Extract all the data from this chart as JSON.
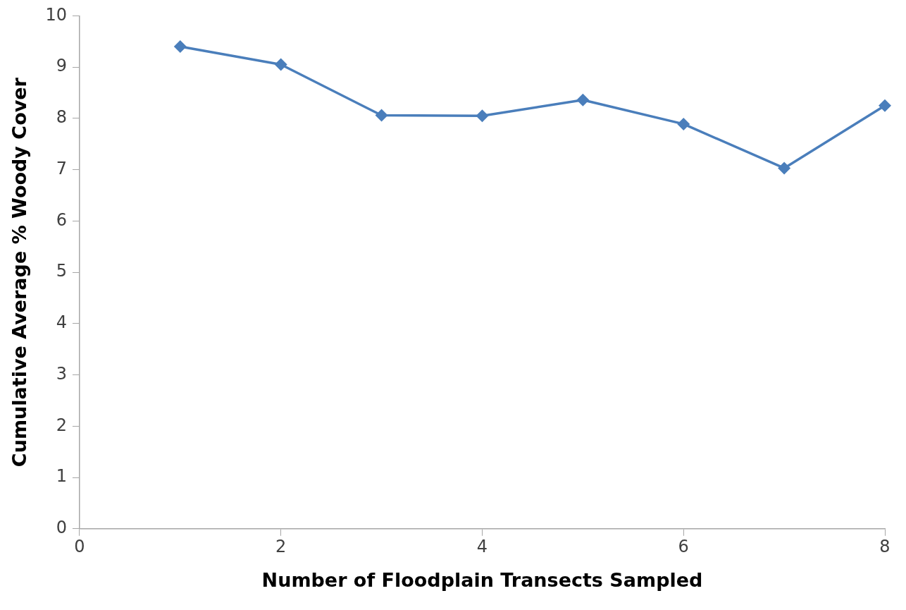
{
  "chart_data": {
    "type": "line",
    "xlabel": "Number of Floodplain Transects Sampled",
    "ylabel": "Cumulative Average % Woody Cover",
    "x": [
      1,
      2,
      3,
      4,
      5,
      6,
      7,
      8
    ],
    "series": [
      {
        "color": "#4a7ebb",
        "values": [
          9.4,
          9.05,
          8.06,
          8.05,
          8.36,
          7.89,
          7.03,
          8.25
        ]
      }
    ],
    "xlim": [
      0,
      8
    ],
    "xticks": [
      0,
      2,
      4,
      6,
      8
    ],
    "ylim": [
      0,
      10
    ],
    "yticks": [
      0,
      1,
      2,
      3,
      4,
      5,
      6,
      7,
      8,
      9,
      10
    ],
    "grid": false,
    "legend": false,
    "marker": "diamond",
    "line_style": "solid"
  }
}
